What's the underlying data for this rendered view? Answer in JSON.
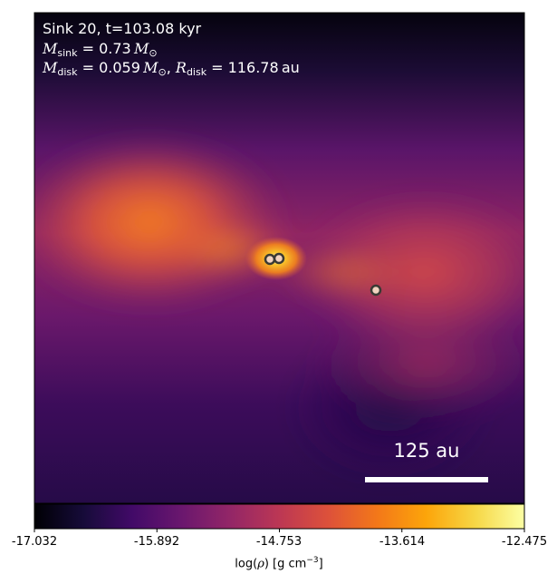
{
  "annotation": {
    "title_line": "Sink 20, t=103.08 kyr",
    "sink_mass_value": "0.73",
    "disk_mass_value": "0.059",
    "disk_radius_value": "116.78",
    "disk_radius_unit": "au"
  },
  "scale_bar": {
    "label": "125 au"
  },
  "colorbar": {
    "ticks": [
      "-17.032",
      "-15.892",
      "-14.753",
      "-13.614",
      "-12.475"
    ],
    "label_prefix": "log(",
    "label_suffix": ") [g cm",
    "label_exp": "−3",
    "label_close": "]",
    "colormap": "inferno"
  },
  "sinks": [
    {
      "name": "sink-a"
    },
    {
      "name": "sink-b"
    },
    {
      "name": "sink-c"
    }
  ],
  "colors": {
    "sink_fill": "#f2d4c0",
    "sink_edge": "#3a3a34",
    "scale_bar": "#ffffff"
  }
}
